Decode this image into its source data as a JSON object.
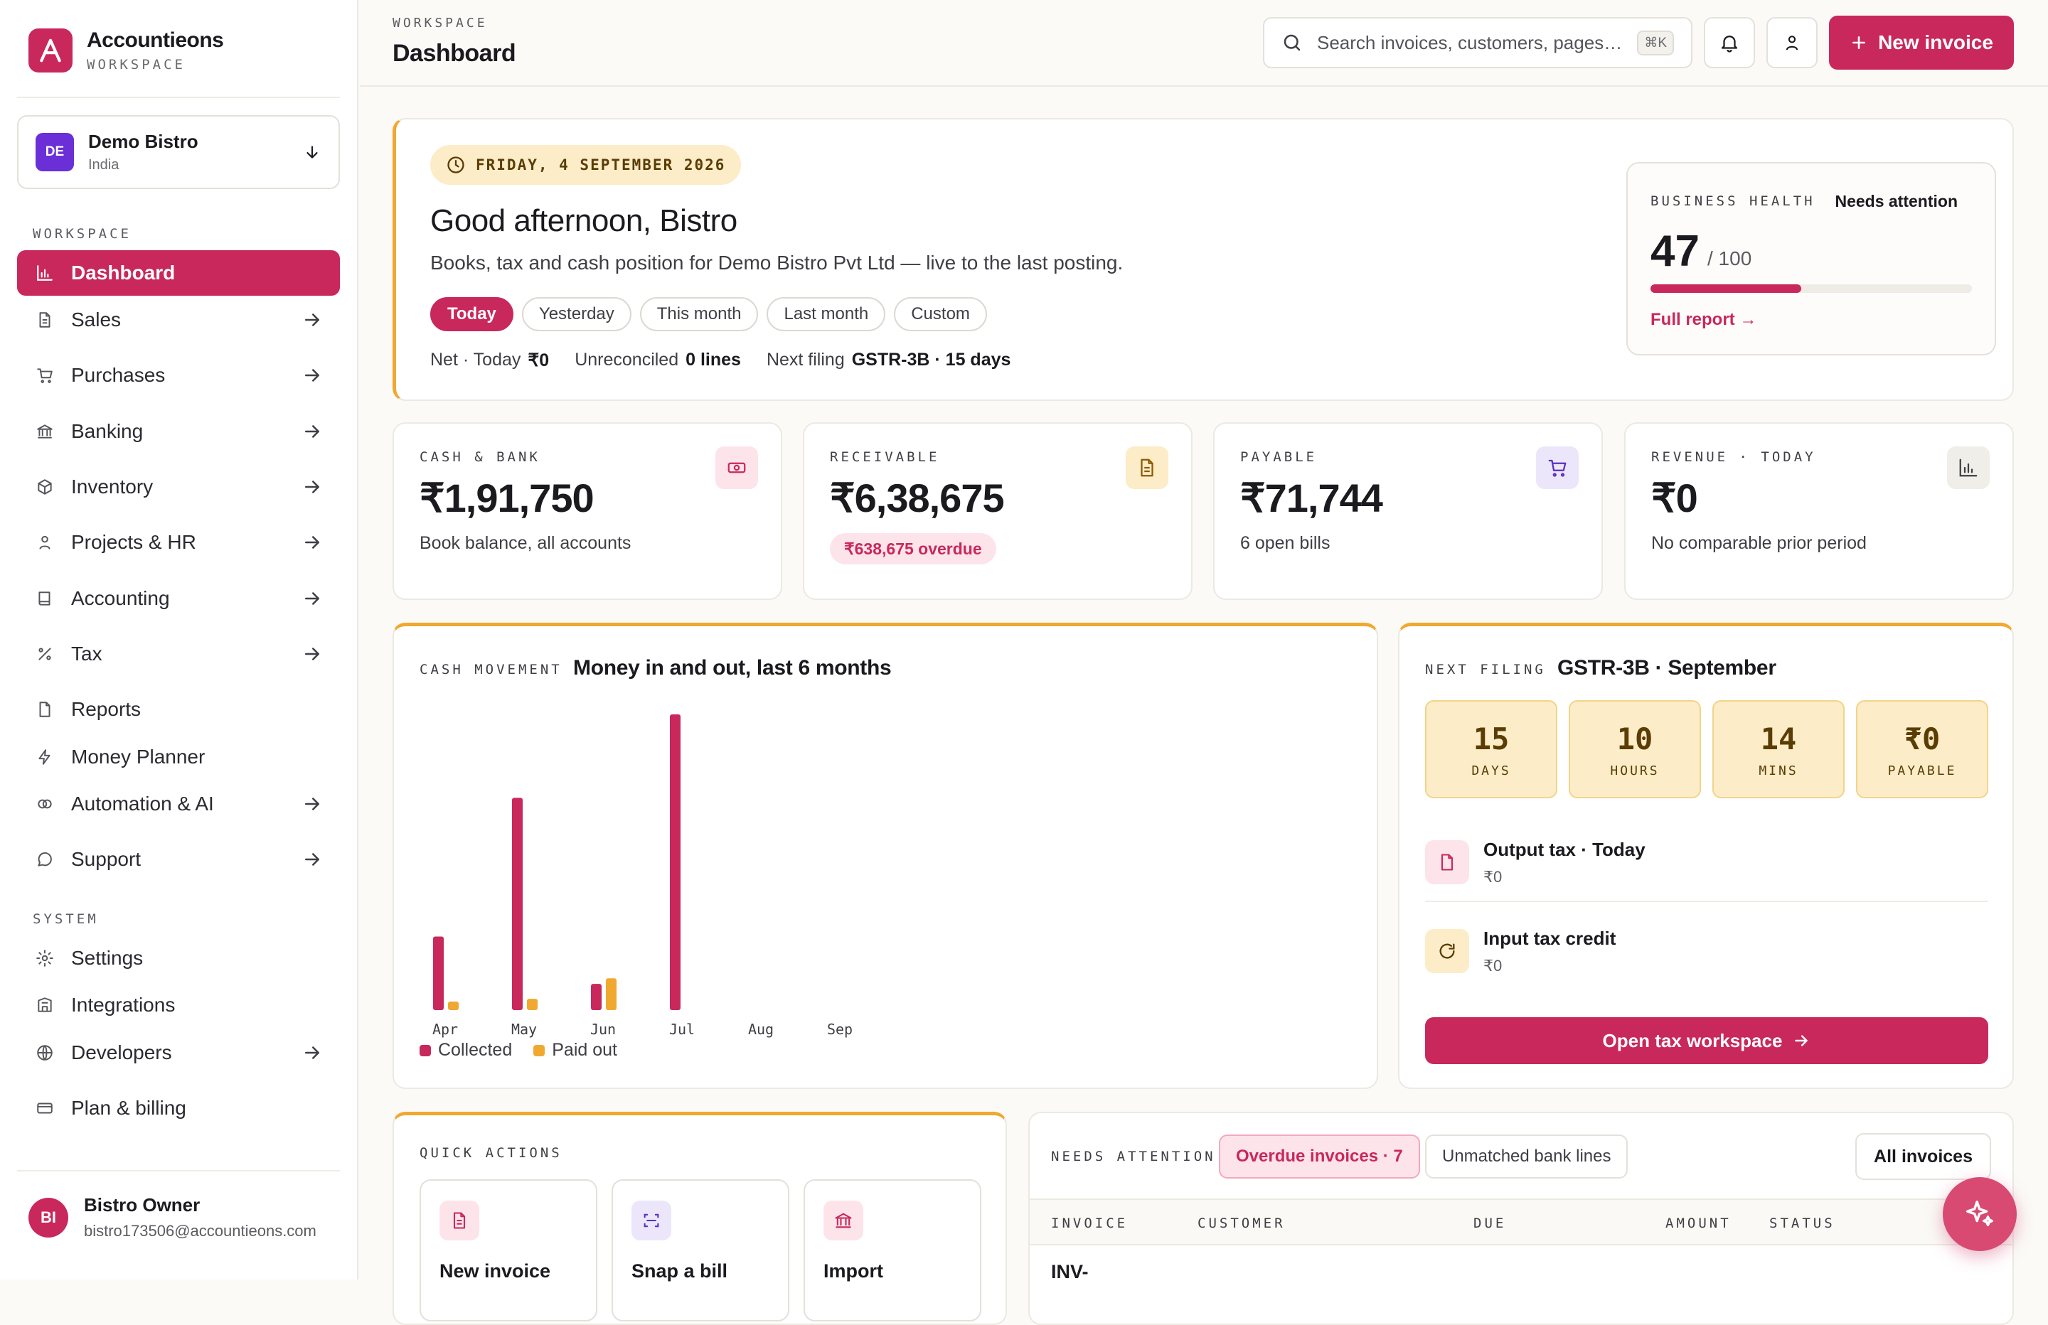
{
  "app": {
    "name": "Accountieons",
    "subtitle": "WORKSPACE"
  },
  "org": {
    "initials": "DE",
    "name": "Demo Bistro",
    "country": "India"
  },
  "sidebar": {
    "workspace_label": "WORKSPACE",
    "system_label": "SYSTEM",
    "items": [
      {
        "label": "Dashboard",
        "icon": "bar-chart-icon",
        "active": true,
        "arrow": false
      },
      {
        "label": "Sales",
        "icon": "document-icon",
        "arrow": true
      },
      {
        "label": "Purchases",
        "icon": "cart-icon",
        "arrow": true
      },
      {
        "label": "Banking",
        "icon": "bank-icon",
        "arrow": true
      },
      {
        "label": "Inventory",
        "icon": "box-icon",
        "arrow": true
      },
      {
        "label": "Projects & HR",
        "icon": "person-icon",
        "arrow": true
      },
      {
        "label": "Accounting",
        "icon": "book-icon",
        "arrow": true
      },
      {
        "label": "Tax",
        "icon": "percent-icon",
        "arrow": true
      },
      {
        "label": "Reports",
        "icon": "file-icon",
        "arrow": false
      },
      {
        "label": "Money Planner",
        "icon": "bolt-icon",
        "arrow": false
      },
      {
        "label": "Automation & AI",
        "icon": "sparkle-icon",
        "arrow": true
      },
      {
        "label": "Support",
        "icon": "chat-icon",
        "arrow": true
      }
    ],
    "system_items": [
      {
        "label": "Settings",
        "icon": "gear-icon",
        "arrow": false
      },
      {
        "label": "Integrations",
        "icon": "integrations-icon",
        "arrow": false
      },
      {
        "label": "Developers",
        "icon": "globe-icon",
        "arrow": true
      },
      {
        "label": "Plan & billing",
        "icon": "card-icon",
        "arrow": false
      }
    ]
  },
  "user": {
    "initials": "BI",
    "name": "Bistro Owner",
    "email": "bistro173506@accountieons.com"
  },
  "header": {
    "breadcrumb": "WORKSPACE",
    "title": "Dashboard",
    "search_placeholder": "Search invoices, customers, pages…",
    "search_shortcut": "⌘K",
    "new_invoice": "New invoice"
  },
  "hero": {
    "date": "FRIDAY, 4 SEPTEMBER 2026",
    "greeting": "Good afternoon, Bistro",
    "subtitle": "Books, tax and cash position for Demo Bistro Pvt Ltd — live to the last posting.",
    "periods": [
      "Today",
      "Yesterday",
      "This month",
      "Last month",
      "Custom"
    ],
    "active_period": "Today",
    "stats": [
      {
        "label": "Net · Today",
        "value": "₹0"
      },
      {
        "label": "Unreconciled",
        "value": "0 lines"
      },
      {
        "label": "Next filing",
        "value": "GSTR-3B · 15 days"
      }
    ]
  },
  "health": {
    "label": "BUSINESS HEALTH",
    "status": "Needs attention",
    "score": "47",
    "max": "/ 100",
    "score_fraction": 0.47,
    "link": "Full report →"
  },
  "kpis": [
    {
      "label": "CASH & BANK",
      "value": "₹1,91,750",
      "sub": "Book balance, all accounts",
      "icon": "cash-icon"
    },
    {
      "label": "RECEIVABLE",
      "value": "₹6,38,675",
      "badge": "₹638,675 overdue",
      "icon": "receipt-icon"
    },
    {
      "label": "PAYABLE",
      "value": "₹71,744",
      "sub": "6 open bills",
      "icon": "cart-icon"
    },
    {
      "label": "REVENUE · TODAY",
      "value": "₹0",
      "sub": "No comparable prior period",
      "icon": "bar-chart-icon"
    }
  ],
  "cash_movement": {
    "label": "CASH MOVEMENT",
    "title": "Money in and out, last 6 months"
  },
  "chart_data": {
    "type": "bar",
    "categories": [
      "Apr",
      "May",
      "Jun",
      "Jul",
      "Aug",
      "Sep"
    ],
    "series": [
      {
        "name": "Collected",
        "color": "#c8285c",
        "values": [
          104,
          300,
          37,
          418,
          0,
          0
        ]
      },
      {
        "name": "Paid out",
        "color": "#f0a830",
        "values": [
          12,
          16,
          45,
          0,
          0,
          0
        ]
      }
    ],
    "ylim": [
      0,
      420
    ],
    "grid": false,
    "legend": "bottom-left"
  },
  "filing": {
    "label": "NEXT FILING",
    "title": "GSTR-3B · September",
    "countdown": [
      {
        "value": "15",
        "unit": "DAYS"
      },
      {
        "value": "10",
        "unit": "HOURS"
      },
      {
        "value": "14",
        "unit": "MINS"
      },
      {
        "value": "₹0",
        "unit": "PAYABLE"
      }
    ],
    "rows": [
      {
        "title": "Output tax · Today",
        "value": "₹0",
        "icon": "document-icon"
      },
      {
        "title": "Input tax credit",
        "value": "₹0",
        "icon": "refresh-icon"
      }
    ],
    "button": "Open tax workspace"
  },
  "quick_actions": {
    "label": "QUICK ACTIONS",
    "items": [
      {
        "label": "New invoice",
        "icon": "document-icon"
      },
      {
        "label": "Snap a bill",
        "icon": "scan-icon"
      },
      {
        "label": "Import",
        "icon": "bank-icon"
      }
    ]
  },
  "attention": {
    "label": "NEEDS ATTENTION",
    "tabs": [
      "Overdue invoices · 7",
      "Unmatched bank lines"
    ],
    "all_button": "All invoices",
    "columns": [
      "INVOICE",
      "CUSTOMER",
      "DUE",
      "AMOUNT",
      "STATUS"
    ],
    "first_row_invoice": "INV-"
  },
  "colors": {
    "accent": "#c8285c",
    "amber": "#f0a830",
    "amber_bg": "#fcecc8"
  }
}
